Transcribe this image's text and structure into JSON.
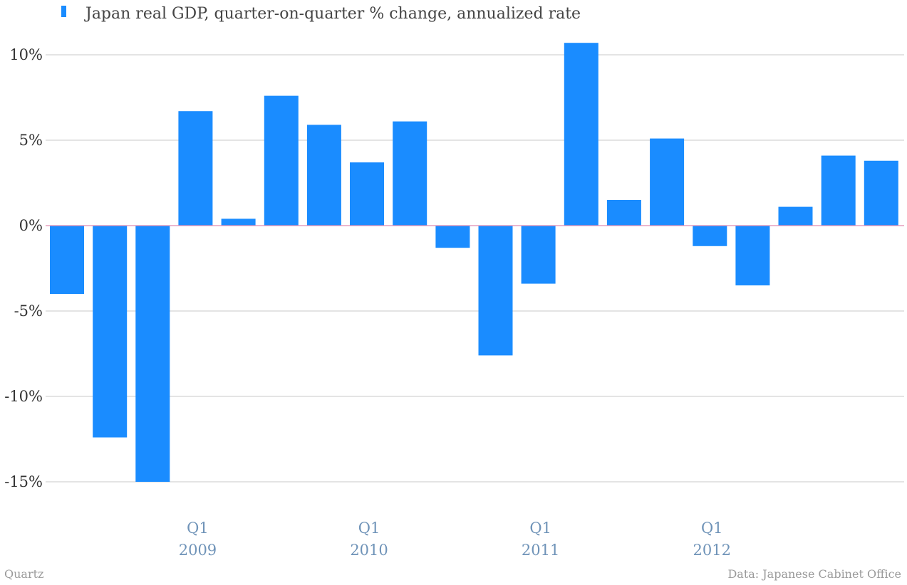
{
  "chart_data": {
    "type": "bar",
    "categories": [
      "Q2 2008",
      "Q3 2008",
      "Q4 2008",
      "Q1 2009",
      "Q2 2009",
      "Q3 2009",
      "Q4 2009",
      "Q1 2010",
      "Q2 2010",
      "Q3 2010",
      "Q4 2010",
      "Q1 2011",
      "Q2 2011",
      "Q3 2011",
      "Q4 2011",
      "Q1 2012",
      "Q2 2012",
      "Q3 2012",
      "Q4 2012",
      "Q1 2013"
    ],
    "series": [
      {
        "name": "Japan real GDP, quarter-on-quarter % change, annualized rate",
        "values": [
          -4.0,
          -12.4,
          -15.0,
          6.7,
          0.4,
          7.6,
          5.9,
          3.7,
          6.1,
          -1.3,
          -7.6,
          -3.4,
          10.7,
          1.5,
          5.1,
          -1.2,
          -3.5,
          1.1,
          4.1,
          3.8
        ]
      }
    ],
    "ylim": [
      -15,
      10
    ],
    "yticks": [
      10,
      5,
      0,
      -5,
      -10,
      -15
    ],
    "ytick_labels": [
      "10%",
      "5%",
      "0%",
      "-5%",
      "-10%",
      "-15%"
    ],
    "xtick_labels": [
      {
        "category_index": 3,
        "line1": "Q1",
        "line2": "2009"
      },
      {
        "category_index": 7,
        "line1": "Q1",
        "line2": "2010"
      },
      {
        "category_index": 11,
        "line1": "Q1",
        "line2": "2011"
      },
      {
        "category_index": 15,
        "line1": "Q1",
        "line2": "2012"
      }
    ],
    "grid": true,
    "legend_position": "top-left",
    "colors": {
      "bar": "#1a8cff",
      "grid": "#c8c8c8",
      "zero_line": "#e08ab0",
      "x_label": "#6f93b8"
    }
  },
  "footer": {
    "source_left": "Quartz",
    "source_right": "Data: Japanese Cabinet Office"
  }
}
